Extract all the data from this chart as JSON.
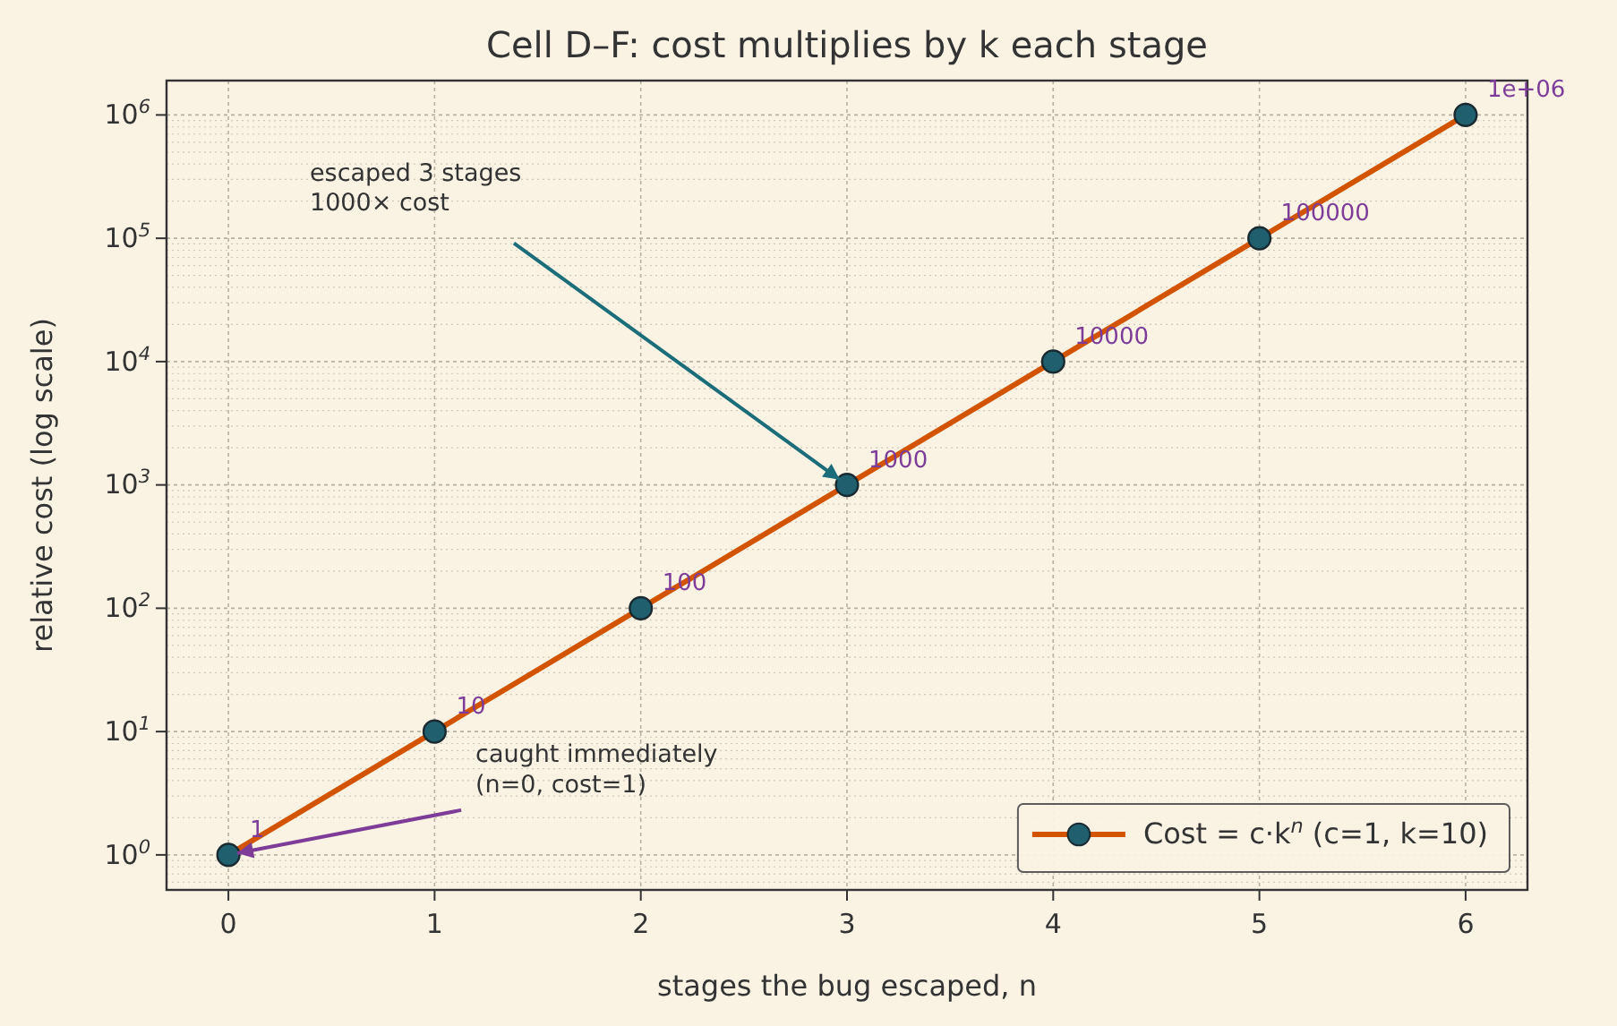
{
  "chart_data": {
    "type": "line",
    "title": "Cell D–F: cost multiplies by k each stage",
    "xlabel": "stages the bug escaped, n",
    "ylabel": "relative cost (log scale)",
    "x": [
      0,
      1,
      2,
      3,
      4,
      5,
      6
    ],
    "series": [
      {
        "name": "Cost = c·k$^{n}$  (c=1, k=10)",
        "color": "#d35400",
        "values": [
          1,
          10,
          100,
          1000,
          10000,
          100000,
          1000000
        ],
        "value_labels": [
          "1",
          "10",
          "100",
          "1000",
          "10000",
          "100000",
          "1e+06"
        ]
      }
    ],
    "xlim": [
      -0.3,
      6.3
    ],
    "xticks": [
      0,
      1,
      2,
      3,
      4,
      5,
      6
    ],
    "ylim": [
      0.52,
      1900000
    ],
    "yticks": [
      {
        "value": 1,
        "label": "10$^{0}$"
      },
      {
        "value": 10,
        "label": "10$^{1}$"
      },
      {
        "value": 100,
        "label": "10$^{2}$"
      },
      {
        "value": 1000,
        "label": "10$^{3}$"
      },
      {
        "value": 10000,
        "label": "10$^{4}$"
      },
      {
        "value": 100000,
        "label": "10$^{5}$"
      },
      {
        "value": 1000000,
        "label": "10$^{6}$"
      }
    ],
    "log": true,
    "grid": true,
    "legend": "bottom right",
    "marker": "circle",
    "line_style": "solid",
    "annotations": [
      {
        "text": "escaped 3 stages\n1000× cost",
        "x": 3,
        "y": 1000
      },
      {
        "text": "caught immediately\n(n=0, cost=1)",
        "x": 0,
        "y": 1
      }
    ]
  }
}
